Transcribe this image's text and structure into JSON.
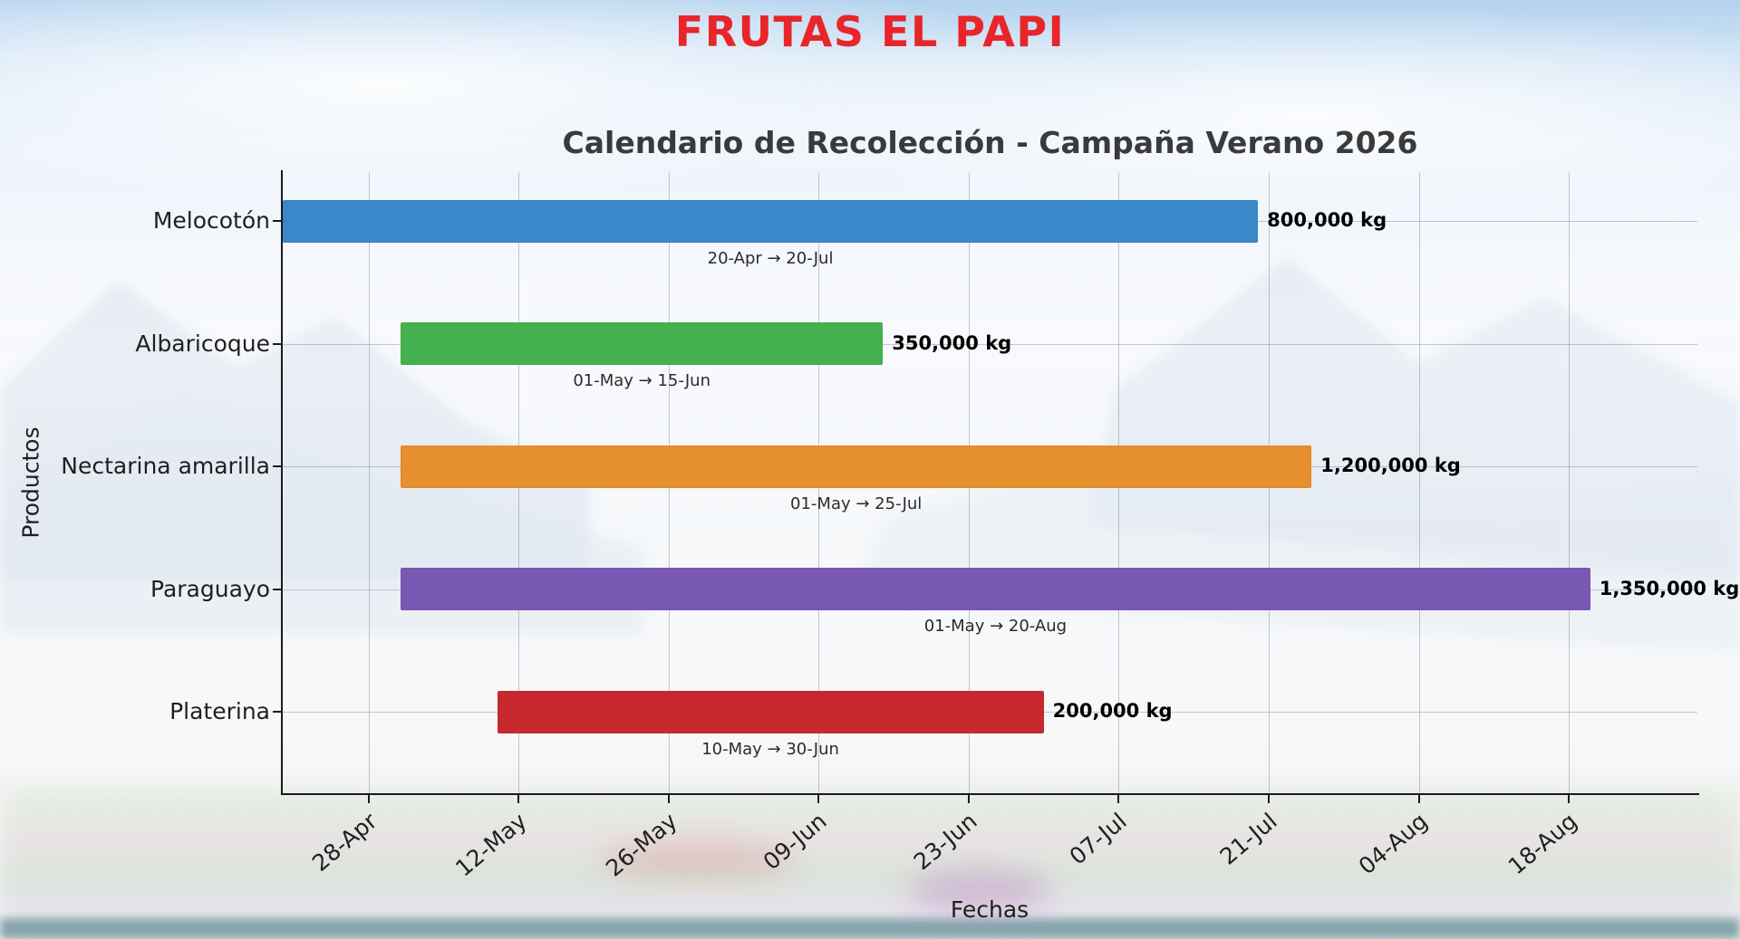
{
  "header": {
    "title": "FRUTAS EL PAPI"
  },
  "colors": {
    "title_red": "#e8252a",
    "axis": "#1a1a1a",
    "grid": "#69738c"
  },
  "chart_data": {
    "type": "bar",
    "subtype": "gantt-horizontal",
    "title": "Calendario de Recolección - Campaña Verano 2026",
    "xlabel": "Fechas",
    "ylabel": "Productos",
    "grid": true,
    "legend": false,
    "year": 2026,
    "x_domain": [
      "20-Apr",
      "30-Aug"
    ],
    "x_tick_labels": [
      "28-Apr",
      "12-May",
      "26-May",
      "09-Jun",
      "23-Jun",
      "07-Jul",
      "21-Jul",
      "04-Aug",
      "18-Aug"
    ],
    "categories": [
      "Melocotón",
      "Albaricoque",
      "Nectarina amarilla",
      "Paraguayo",
      "Platerina"
    ],
    "tasks": [
      {
        "name": "Melocotón",
        "start": "20-Apr",
        "end": "20-Jul",
        "range_label": "20-Apr → 20-Jul",
        "value_label": "800,000 kg",
        "quantity_kg": 800000,
        "color": "#3a87c9"
      },
      {
        "name": "Albaricoque",
        "start": "01-May",
        "end": "15-Jun",
        "range_label": "01-May → 15-Jun",
        "value_label": "350,000 kg",
        "quantity_kg": 350000,
        "color": "#45b04e"
      },
      {
        "name": "Nectarina amarilla",
        "start": "01-May",
        "end": "25-Jul",
        "range_label": "01-May → 25-Jul",
        "value_label": "1,200,000 kg",
        "quantity_kg": 1200000,
        "color": "#e68f2d"
      },
      {
        "name": "Paraguayo",
        "start": "01-May",
        "end": "20-Aug",
        "range_label": "01-May → 20-Aug",
        "value_label": "1,350,000 kg",
        "quantity_kg": 1350000,
        "color": "#7a59b5"
      },
      {
        "name": "Platerina",
        "start": "10-May",
        "end": "30-Jun",
        "range_label": "10-May → 30-Jun",
        "value_label": "200,000 kg",
        "quantity_kg": 200000,
        "color": "#c8292e"
      }
    ]
  }
}
